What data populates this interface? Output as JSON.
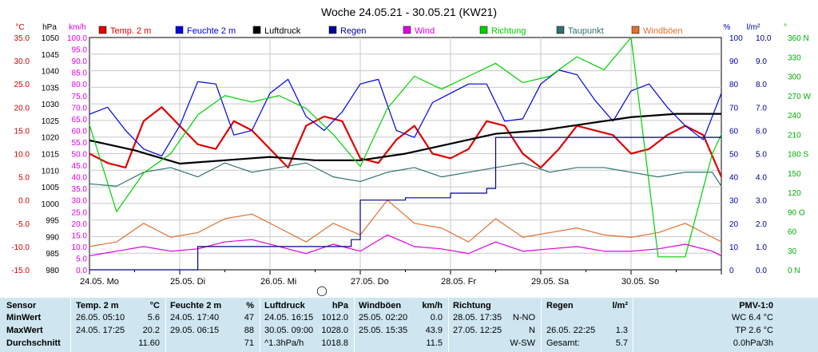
{
  "chart_data": {
    "type": "line",
    "title": "Woche 24.05.21 - 30.05.21 (KW21)",
    "x_labels": [
      "24.05. Mo",
      "25.05. Di",
      "26.05. Mi",
      "27.05. Do",
      "28.05. Fr",
      "29.05. Sa",
      "30.05. So"
    ],
    "x_range_days": [
      0,
      7
    ],
    "legend": [
      {
        "label": "Temp. 2 m",
        "color": "#e00000"
      },
      {
        "label": "Feuchte 2 m",
        "color": "#0000e0"
      },
      {
        "label": "Luftdruck",
        "color": "#000000"
      },
      {
        "label": "Regen",
        "color": "#000090"
      },
      {
        "label": "Wind",
        "color": "#e000e0"
      },
      {
        "label": "Richtung",
        "color": "#00d000"
      },
      {
        "label": "Taupunkt",
        "color": "#307070"
      },
      {
        "label": "Windböen",
        "color": "#e07030"
      }
    ],
    "axes_left": [
      {
        "unit": "°C",
        "color": "#d00000",
        "min": -15,
        "max": 35,
        "step": 5,
        "labels": [
          "35.0",
          "30.0",
          "25.0",
          "20.0",
          "15.0",
          "10.0",
          "5.0",
          "0.0",
          "-5.0",
          "-10.0",
          "-15.0"
        ]
      },
      {
        "unit": "hPa",
        "color": "#000000",
        "min": 980,
        "max": 1050,
        "step": 5,
        "labels": [
          "1050",
          "1045",
          "1040",
          "1035",
          "1030",
          "1025",
          "1020",
          "1015",
          "1010",
          "1005",
          "1000",
          "995",
          "990",
          "985",
          "980"
        ]
      },
      {
        "unit": "km/h",
        "color": "#e000e0",
        "min": 0,
        "max": 100,
        "step": 5,
        "labels": [
          "100.0",
          "95.0",
          "90.0",
          "85.0",
          "80.0",
          "75.0",
          "70.0",
          "65.0",
          "60.0",
          "55.0",
          "50.0",
          "45.0",
          "40.0",
          "35.0",
          "30.0",
          "25.0",
          "20.0",
          "15.0",
          "10.0",
          "5.0",
          "0.0"
        ]
      }
    ],
    "axes_right": [
      {
        "unit": "%",
        "color": "#0000c0",
        "min": 0,
        "max": 100,
        "step": 10,
        "labels": [
          "100",
          "90",
          "80",
          "70",
          "60",
          "50",
          "40",
          "30",
          "20",
          "10",
          "0"
        ]
      },
      {
        "unit": "l/m²",
        "color": "#000090",
        "min": 0,
        "max": 10,
        "step": 1,
        "labels": [
          "10.0",
          "9.0",
          "8.0",
          "7.0",
          "6.0",
          "5.0",
          "4.0",
          "3.0",
          "2.0",
          "1.0",
          "0.0"
        ]
      },
      {
        "unit": "°",
        "color": "#00b000",
        "min": 0,
        "max": 360,
        "step": 30,
        "labels": [
          "360 N",
          "330",
          "300",
          "270 W",
          "240",
          "210",
          "180 S",
          "150",
          "120",
          "90 O",
          "60",
          "30",
          "0 N"
        ]
      }
    ],
    "series": [
      {
        "name": "Temp. 2 m",
        "color": "#e00000",
        "axis": "°C",
        "x": [
          0,
          0.2,
          0.4,
          0.6,
          0.8,
          1.0,
          1.2,
          1.4,
          1.6,
          1.8,
          2.0,
          2.2,
          2.4,
          2.6,
          2.8,
          3.0,
          3.2,
          3.4,
          3.6,
          3.8,
          4.0,
          4.2,
          4.4,
          4.6,
          4.8,
          5.0,
          5.2,
          5.4,
          5.6,
          5.8,
          6.0,
          6.2,
          6.4,
          6.6,
          6.8,
          7.0
        ],
        "y": [
          10,
          8,
          7,
          17,
          20,
          16,
          12,
          11,
          17,
          15,
          11,
          7,
          16,
          18,
          17,
          9,
          8,
          13,
          16,
          10,
          9,
          11,
          17,
          16,
          10,
          7,
          11,
          16,
          15,
          14,
          10,
          11,
          14,
          16,
          14,
          5
        ]
      },
      {
        "name": "Feuchte 2 m",
        "color": "#0000e0",
        "axis": "%",
        "x": [
          0,
          0.2,
          0.4,
          0.6,
          0.8,
          1.0,
          1.2,
          1.4,
          1.6,
          1.8,
          2.0,
          2.2,
          2.4,
          2.6,
          2.8,
          3.0,
          3.2,
          3.4,
          3.6,
          3.8,
          4.0,
          4.2,
          4.4,
          4.6,
          4.8,
          5.0,
          5.2,
          5.4,
          5.6,
          5.8,
          6.0,
          6.2,
          6.4,
          6.6,
          6.8,
          7.0
        ],
        "y": [
          67,
          70,
          60,
          52,
          49,
          62,
          81,
          80,
          58,
          60,
          76,
          82,
          66,
          60,
          68,
          80,
          82,
          60,
          57,
          72,
          76,
          80,
          80,
          64,
          65,
          80,
          86,
          84,
          73,
          64,
          77,
          80,
          70,
          62,
          56,
          76
        ]
      },
      {
        "name": "Luftdruck",
        "color": "#000000",
        "axis": "hPa",
        "x": [
          0,
          0.5,
          1.0,
          1.5,
          2.0,
          2.5,
          3.0,
          3.5,
          4.0,
          4.5,
          5.0,
          5.5,
          6.0,
          6.5,
          7.0
        ],
        "y": [
          1019,
          1016,
          1012,
          1013,
          1014,
          1013,
          1013,
          1015,
          1018,
          1021,
          1022,
          1024,
          1026,
          1027,
          1027
        ]
      },
      {
        "name": "Taupunkt",
        "color": "#307070",
        "axis": "°C",
        "x": [
          0,
          0.3,
          0.6,
          0.9,
          1.2,
          1.5,
          1.8,
          2.1,
          2.4,
          2.7,
          3.0,
          3.3,
          3.6,
          3.9,
          4.2,
          4.5,
          4.8,
          5.1,
          5.4,
          5.7,
          6.0,
          6.3,
          6.6,
          6.9,
          7.0
        ],
        "y": [
          3.5,
          3,
          6,
          7,
          5,
          8,
          6,
          7,
          8,
          5,
          4,
          6,
          7,
          5,
          6,
          7,
          8,
          6,
          7,
          7,
          6,
          5,
          6,
          6,
          3
        ]
      },
      {
        "name": "Windböen",
        "color": "#e07030",
        "axis": "km/h",
        "x": [
          0,
          0.3,
          0.6,
          0.9,
          1.2,
          1.5,
          1.8,
          2.1,
          2.4,
          2.7,
          3.0,
          3.3,
          3.6,
          3.9,
          4.2,
          4.5,
          4.8,
          5.1,
          5.4,
          5.7,
          6.0,
          6.3,
          6.6,
          6.9,
          7.0
        ],
        "y": [
          10,
          12,
          20,
          14,
          16,
          22,
          24,
          18,
          12,
          20,
          15,
          30,
          20,
          18,
          12,
          22,
          14,
          16,
          18,
          15,
          14,
          16,
          20,
          14,
          12
        ]
      },
      {
        "name": "Wind",
        "color": "#e000e0",
        "axis": "km/h",
        "x": [
          0,
          0.3,
          0.6,
          0.9,
          1.2,
          1.5,
          1.8,
          2.1,
          2.4,
          2.7,
          3.0,
          3.3,
          3.6,
          3.9,
          4.2,
          4.5,
          4.8,
          5.1,
          5.4,
          5.7,
          6.0,
          6.3,
          6.6,
          6.9,
          7.0
        ],
        "y": [
          6,
          8,
          10,
          8,
          9,
          12,
          13,
          10,
          7,
          11,
          8,
          15,
          10,
          9,
          7,
          12,
          8,
          9,
          10,
          8,
          8,
          9,
          11,
          8,
          6
        ]
      },
      {
        "name": "Richtung",
        "color": "#00d000",
        "axis": "°",
        "x": [
          0,
          0.3,
          0.6,
          0.9,
          1.2,
          1.5,
          1.8,
          2.1,
          2.4,
          2.7,
          3.0,
          3.3,
          3.6,
          3.9,
          4.2,
          4.5,
          4.8,
          5.1,
          5.4,
          5.7,
          6.0,
          6.3,
          6.6,
          6.9,
          7.0
        ],
        "y": [
          225,
          90,
          150,
          180,
          240,
          270,
          260,
          270,
          250,
          210,
          160,
          250,
          300,
          280,
          300,
          320,
          290,
          300,
          330,
          310,
          360,
          20,
          20,
          180,
          210
        ]
      },
      {
        "name": "Regen",
        "color": "#000090",
        "axis": "l/m²",
        "x": [
          0,
          1.2,
          2.5,
          2.9,
          3.0,
          3.5,
          4.0,
          4.4,
          4.5,
          5.0,
          6.0,
          7.0
        ],
        "y": [
          0,
          1.0,
          1.0,
          1.3,
          3.0,
          3.1,
          3.3,
          3.5,
          5.7,
          5.7,
          5.7,
          5.7
        ]
      }
    ]
  },
  "table": {
    "headers": {
      "sensor": "Sensor",
      "temp": "Temp. 2 m",
      "temp_unit": "°C",
      "feuchte": "Feuchte 2 m",
      "feuchte_unit": "%",
      "luft": "Luftdruck",
      "luft_unit": "hPa",
      "wind": "Windböen",
      "wind_unit": "km/h",
      "richtung": "Richtung",
      "regen": "Regen",
      "regen_unit": "l/m²",
      "pmv": "PMV-1:0"
    },
    "rows": [
      {
        "label": "MinWert",
        "temp_time": "26.05. 05:10",
        "temp_val": "5.6",
        "feuchte_time": "24.05. 17:40",
        "feuchte_val": "47",
        "luft_time": "24.05. 16:15",
        "luft_val": "1012.0",
        "wind_time": "25.05. 02:20",
        "wind_val": "0.0",
        "richtung_time": "28.05. 17:35",
        "richtung_val": "N-NO",
        "regen_time": "",
        "regen_val": "",
        "pmv": "WC 6.4 °C"
      },
      {
        "label": "MaxWert",
        "temp_time": "24.05. 17:25",
        "temp_val": "20.2",
        "feuchte_time": "29.05. 06:15",
        "feuchte_val": "88",
        "luft_time": "30.05. 09:00",
        "luft_val": "1028.0",
        "wind_time": "25.05. 15:35",
        "wind_val": "43.9",
        "richtung_time": "27.05. 12:25",
        "richtung_val": "N",
        "regen_time": "26.05. 22:25",
        "regen_val": "1.3",
        "pmv": "TP 2.6 °C"
      },
      {
        "label": "Durchschnitt",
        "temp_time": "",
        "temp_val": "11.60",
        "feuchte_time": "",
        "feuchte_val": "71",
        "luft_time": "^1.3hPa/h",
        "luft_val": "1018.8",
        "wind_time": "",
        "wind_val": "11.5",
        "richtung_time": "",
        "richtung_val": "W-SW",
        "regen_time": "Gesamt:",
        "regen_val": "5.7",
        "pmv": "0.0hPa/3h"
      }
    ]
  },
  "moon_symbol": "◯"
}
